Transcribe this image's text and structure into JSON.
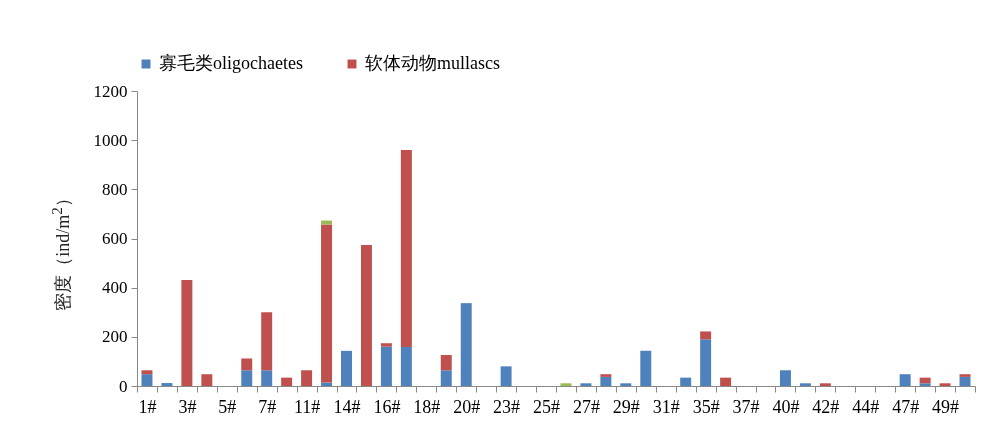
{
  "chart_data": {
    "type": "bar",
    "stacked": true,
    "ylabel": "密度（ind/m$^{2}$）",
    "categories": [
      "1#",
      null,
      "3#",
      null,
      "5#",
      null,
      "7#",
      null,
      "11#",
      null,
      "14#",
      null,
      "16#",
      null,
      "18#",
      null,
      "20#",
      null,
      "23#",
      null,
      "25#",
      null,
      "27#",
      null,
      "29#",
      null,
      "31#",
      null,
      "35#",
      null,
      "37#",
      null,
      "40#",
      null,
      "42#",
      null,
      "44#",
      null,
      "47#",
      null,
      "49#",
      null
    ],
    "series": [
      {
        "name": "寡毛类oligochaetes",
        "color": "#4f81bd",
        "values": [
          48,
          12,
          null,
          null,
          null,
          64,
          64,
          null,
          null,
          14,
          143,
          null,
          160,
          159,
          null,
          64,
          337,
          null,
          80,
          null,
          null,
          null,
          11,
          37,
          11,
          143,
          null,
          34,
          190,
          null,
          null,
          null,
          64,
          11,
          null,
          null,
          null,
          null,
          48,
          11,
          null,
          37
        ]
      },
      {
        "name": "软体动物mullascs",
        "color": "#c0504d",
        "values": [
          16,
          null,
          431,
          48,
          null,
          48,
          236,
          34,
          64,
          643,
          null,
          574,
          14,
          801,
          null,
          62,
          null,
          null,
          null,
          null,
          null,
          null,
          null,
          11,
          null,
          null,
          null,
          null,
          32,
          34,
          null,
          null,
          null,
          null,
          11,
          null,
          null,
          null,
          null,
          23,
          11,
          11
        ]
      },
      {
        "color": "#9bbb59",
        "values": [
          null,
          null,
          null,
          null,
          null,
          null,
          null,
          null,
          null,
          16,
          null,
          null,
          null,
          null,
          null,
          null,
          null,
          null,
          null,
          null,
          null,
          11,
          null,
          null,
          null,
          null,
          null,
          null,
          null,
          null,
          null,
          null,
          null,
          null,
          null,
          null,
          null,
          null,
          null,
          null,
          null,
          null
        ]
      }
    ],
    "ylim": [
      0,
      1200
    ],
    "yticks": [
      0,
      200,
      400,
      600,
      800,
      1000,
      1200
    ],
    "legend": "top",
    "grid": false
  }
}
